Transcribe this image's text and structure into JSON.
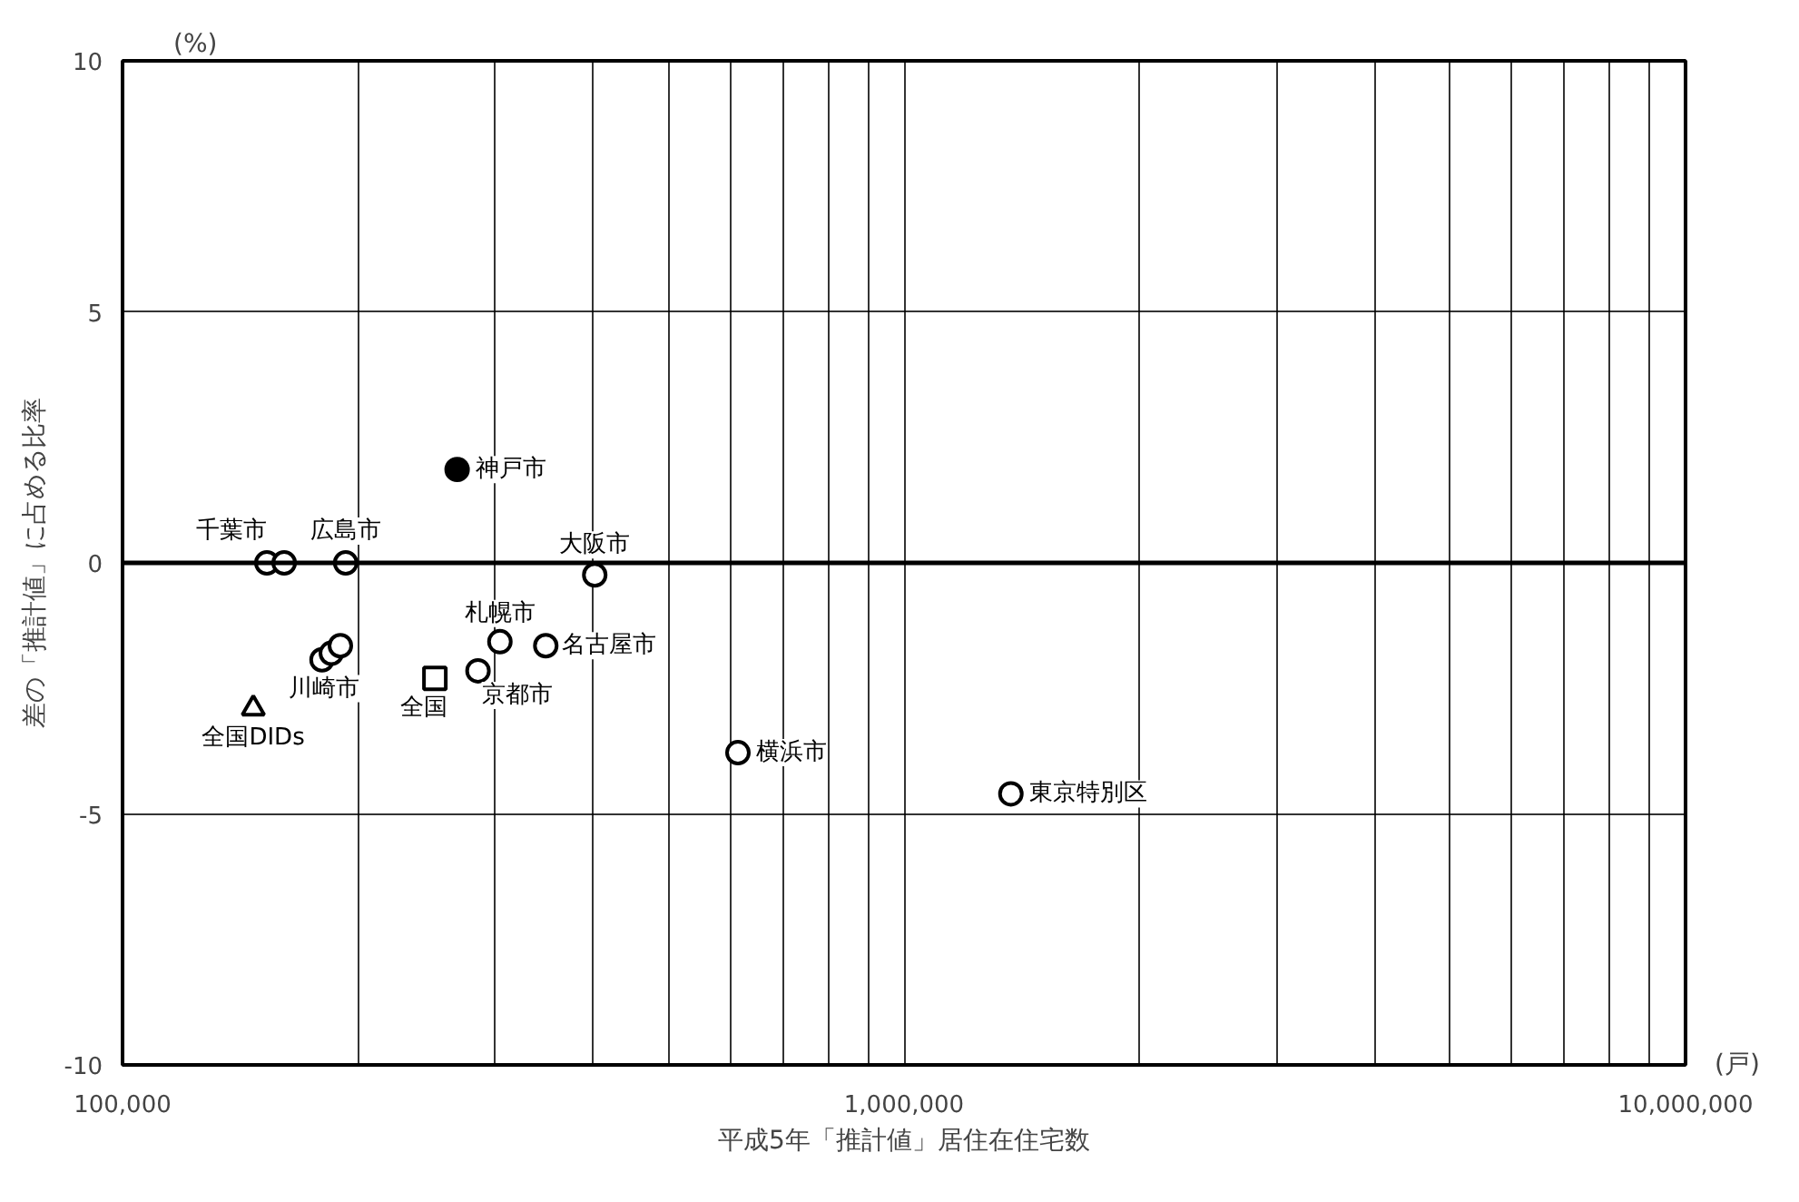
{
  "chart_data": {
    "type": "scatter",
    "xlabel": "平成5年「推計値」居住在住宅数",
    "ylabel": "差の「推計値」に占める比率",
    "log": "x",
    "xlim": [
      100000,
      10000000
    ],
    "ylim": [
      -10,
      10
    ],
    "xticks": [
      {
        "value": 100000,
        "label": "100,000"
      },
      {
        "value": 200000,
        "label": null
      },
      {
        "value": 300000,
        "label": null
      },
      {
        "value": 400000,
        "label": null
      },
      {
        "value": 500000,
        "label": null
      },
      {
        "value": 600000,
        "label": null
      },
      {
        "value": 700000,
        "label": null
      },
      {
        "value": 800000,
        "label": null
      },
      {
        "value": 900000,
        "label": null
      },
      {
        "value": 1000000,
        "label": "1,000,000"
      },
      {
        "value": 2000000,
        "label": null
      },
      {
        "value": 3000000,
        "label": null
      },
      {
        "value": 4000000,
        "label": null
      },
      {
        "value": 5000000,
        "label": null
      },
      {
        "value": 6000000,
        "label": null
      },
      {
        "value": 7000000,
        "label": null
      },
      {
        "value": 8000000,
        "label": null
      },
      {
        "value": 9000000,
        "label": null
      },
      {
        "value": 10000000,
        "label": "10,000,000"
      }
    ],
    "yticks": [
      -10,
      -5,
      0,
      5,
      10
    ],
    "grid": true,
    "ref_lines": [
      {
        "axis": "y",
        "value": 0,
        "label": null,
        "color": "#000000"
      }
    ],
    "series": [
      {
        "color": "#ffffff",
        "marker": "circle",
        "x": [
          153000,
          161000,
          193000,
          402000,
          304000,
          348000,
          285000,
          180000,
          185000,
          190000,
          613000,
          1370000
        ],
        "values": [
          0,
          0,
          0,
          -0.24,
          -1.57,
          -1.65,
          -2.15,
          -1.93,
          -1.8,
          -1.65,
          -3.78,
          -4.6
        ]
      },
      {
        "color": "#000000",
        "marker": "circle",
        "x": [
          268000
        ],
        "values": [
          1.86
        ]
      },
      {
        "color": "#ffffff",
        "marker": "square",
        "x": [
          251000
        ],
        "values": [
          -2.3
        ]
      },
      {
        "color": "#ffffff",
        "marker": "triangle",
        "x": [
          147000
        ],
        "values": [
          -2.9
        ]
      }
    ],
    "annotations": [
      {
        "text": "神戸市",
        "x": 268000,
        "y": 1.86
      },
      {
        "text": "千葉市",
        "x": 153000,
        "y": 0
      },
      {
        "text": "広島市",
        "x": 193000,
        "y": 0
      },
      {
        "text": "大阪市",
        "x": 402000,
        "y": -0.24
      },
      {
        "text": "札幌市",
        "x": 304000,
        "y": -1.57
      },
      {
        "text": "名古屋市",
        "x": 348000,
        "y": -1.65
      },
      {
        "text": "京都市",
        "x": 285000,
        "y": -2.15
      },
      {
        "text": "川崎市",
        "x": 185000,
        "y": -1.8
      },
      {
        "text": "全国",
        "x": 251000,
        "y": -2.3
      },
      {
        "text": "全国DIDs",
        "x": 147000,
        "y": -2.9
      },
      {
        "text": "横浜市",
        "x": 613000,
        "y": -3.78
      },
      {
        "text": "東京特別区",
        "x": 1370000,
        "y": -4.6
      },
      "(%)",
      "(戸)"
    ]
  }
}
